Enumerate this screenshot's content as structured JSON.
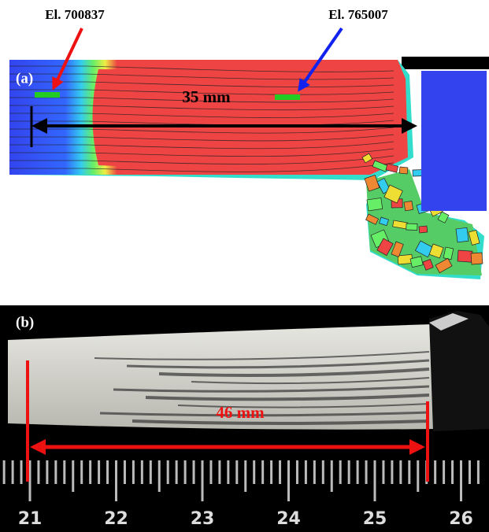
{
  "panel_a": {
    "label": "(a)",
    "element_labels": [
      "El. 700837",
      "El. 765007"
    ],
    "dimension": "35 mm"
  },
  "panel_b": {
    "label": "(b)",
    "dimension": "46 mm",
    "ruler_labels": [
      "21",
      "22",
      "23",
      "24",
      "25",
      "26"
    ]
  }
}
